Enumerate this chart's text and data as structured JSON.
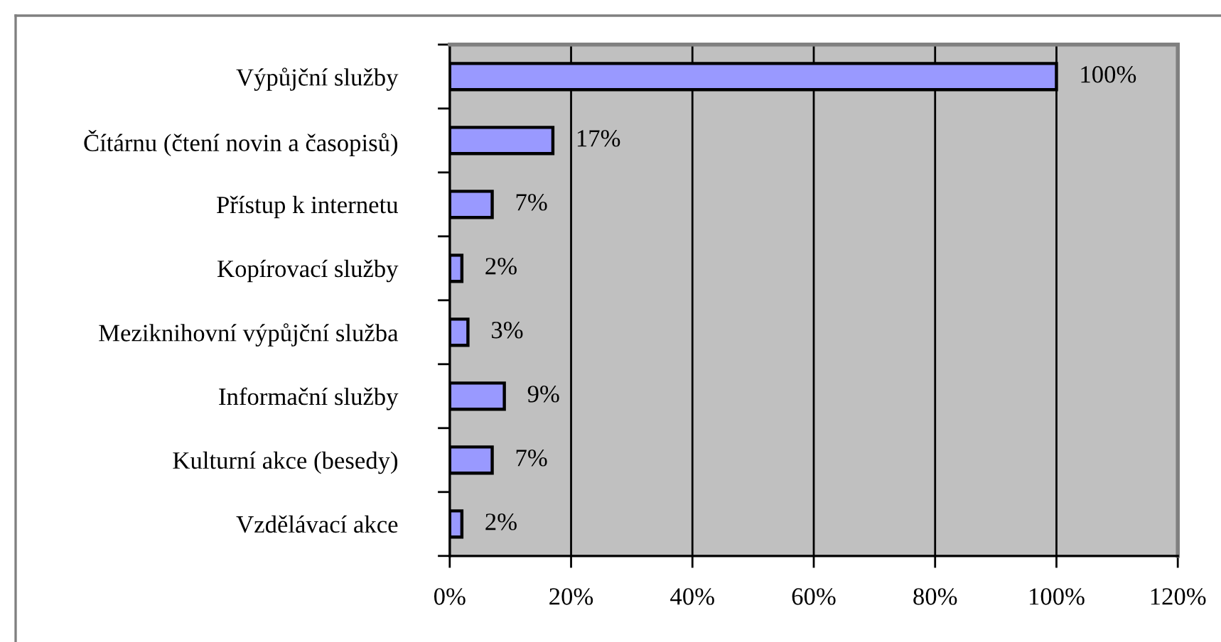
{
  "chart_data": {
    "type": "bar",
    "orientation": "horizontal",
    "categories": [
      "Výpůjční služby",
      "Čítárnu (čtení novin a časopisů)",
      "Přístup k internetu",
      "Kopírovací služby",
      "Meziknihovní výpůjční služba",
      "Informační služby",
      "Kulturní akce (besedy)",
      "Vzdělávací akce"
    ],
    "values": [
      100,
      17,
      7,
      2,
      3,
      9,
      7,
      2
    ],
    "color": "#9999ff",
    "value_labels": [
      "100%",
      "17%",
      "7%",
      "2%",
      "3%",
      "9%",
      "7%",
      "2%"
    ],
    "xlim": [
      0,
      120
    ],
    "xticks": [
      {
        "value": 0,
        "label": "0%"
      },
      {
        "value": 20,
        "label": "20%"
      },
      {
        "value": 40,
        "label": "40%"
      },
      {
        "value": 60,
        "label": "60%"
      },
      {
        "value": 80,
        "label": "80%"
      },
      {
        "value": 100,
        "label": "100%"
      },
      {
        "value": 120,
        "label": "120%"
      }
    ],
    "grid": "x"
  }
}
